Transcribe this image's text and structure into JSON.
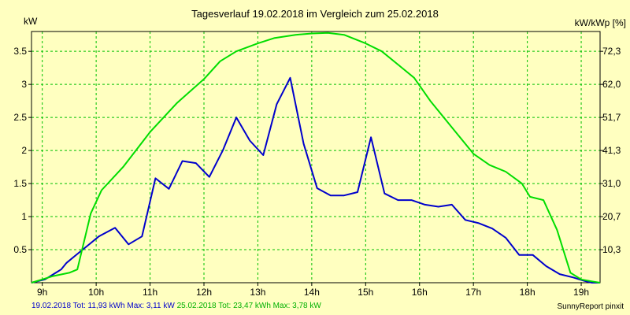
{
  "chart_data": {
    "type": "line",
    "title": "Tagesverlauf 19.02.2018 im Vergleich zum 25.02.2018",
    "ylabel": "kW",
    "ylabel_right": "kW/kWp [%]",
    "xlim": [
      8.8,
      19.35
    ],
    "ylim": [
      0,
      3.8
    ],
    "x_ticks": [
      9,
      10,
      11,
      12,
      13,
      14,
      15,
      16,
      17,
      18,
      19
    ],
    "x_tick_labels": [
      "9h",
      "10h",
      "11h",
      "12h",
      "13h",
      "14h",
      "15h",
      "16h",
      "17h",
      "18h",
      "19h"
    ],
    "y_ticks": [
      0.5,
      1,
      1.5,
      2,
      2.5,
      3,
      3.5
    ],
    "y_tick_labels": [
      "0.5",
      "1",
      "1.5",
      "2",
      "2.5",
      "3",
      "3.5"
    ],
    "y_right_ticks": [
      0.5,
      1,
      1.5,
      2,
      2.5,
      3,
      3.5
    ],
    "y_right_tick_labels": [
      "10,3",
      "20,7",
      "31,0",
      "41,3",
      "51,7",
      "62,0",
      "72,3"
    ],
    "grid": true,
    "legend_position": "bottom-left",
    "series": [
      {
        "name": "19.02.2018",
        "color": "#0000cc",
        "summary": "19.02.2018 Tot: 11,93 kWh Max: 3,11 kW",
        "x": [
          8.8,
          9.05,
          9.15,
          9.25,
          9.35,
          9.45,
          9.6,
          9.75,
          9.9,
          10.05,
          10.35,
          10.6,
          10.85,
          11.1,
          11.35,
          11.6,
          11.85,
          12.1,
          12.35,
          12.6,
          12.85,
          13.1,
          13.35,
          13.6,
          13.85,
          14.1,
          14.35,
          14.6,
          14.85,
          15.1,
          15.35,
          15.6,
          15.85,
          16.1,
          16.35,
          16.6,
          16.85,
          17.1,
          17.35,
          17.6,
          17.85,
          18.1,
          18.35,
          18.6,
          18.85,
          19.05,
          19.2,
          19.35
        ],
        "y": [
          0.0,
          0.05,
          0.1,
          0.15,
          0.2,
          0.3,
          0.4,
          0.5,
          0.6,
          0.7,
          0.83,
          0.58,
          0.7,
          1.58,
          1.42,
          1.84,
          1.81,
          1.6,
          2.0,
          2.5,
          2.15,
          1.93,
          2.7,
          3.1,
          2.1,
          1.43,
          1.32,
          1.32,
          1.37,
          2.2,
          1.35,
          1.25,
          1.25,
          1.18,
          1.15,
          1.18,
          0.95,
          0.9,
          0.82,
          0.68,
          0.42,
          0.42,
          0.25,
          0.13,
          0.08,
          0.03,
          0.0,
          0.0
        ]
      },
      {
        "name": "25.02.2018",
        "color": "#00dd00",
        "summary": "25.02.2018 Tot: 23,47 kWh Max: 3,78 kW",
        "x": [
          8.8,
          9.0,
          9.2,
          9.5,
          9.65,
          9.9,
          10.1,
          10.5,
          11.0,
          11.5,
          12.0,
          12.3,
          12.6,
          13.0,
          13.3,
          13.7,
          14.0,
          14.3,
          14.6,
          15.0,
          15.3,
          15.6,
          15.9,
          16.2,
          16.6,
          17.0,
          17.3,
          17.6,
          17.9,
          18.05,
          18.3,
          18.55,
          18.8,
          19.0,
          19.2,
          19.35
        ],
        "y": [
          0.0,
          0.05,
          0.1,
          0.15,
          0.2,
          1.05,
          1.4,
          1.75,
          2.28,
          2.72,
          3.08,
          3.35,
          3.5,
          3.62,
          3.7,
          3.75,
          3.77,
          3.78,
          3.75,
          3.62,
          3.5,
          3.3,
          3.1,
          2.75,
          2.35,
          1.95,
          1.78,
          1.68,
          1.5,
          1.3,
          1.25,
          0.8,
          0.15,
          0.05,
          0.02,
          0.0
        ]
      }
    ]
  },
  "footer": {
    "credit": "SunnyReport pinxit"
  }
}
